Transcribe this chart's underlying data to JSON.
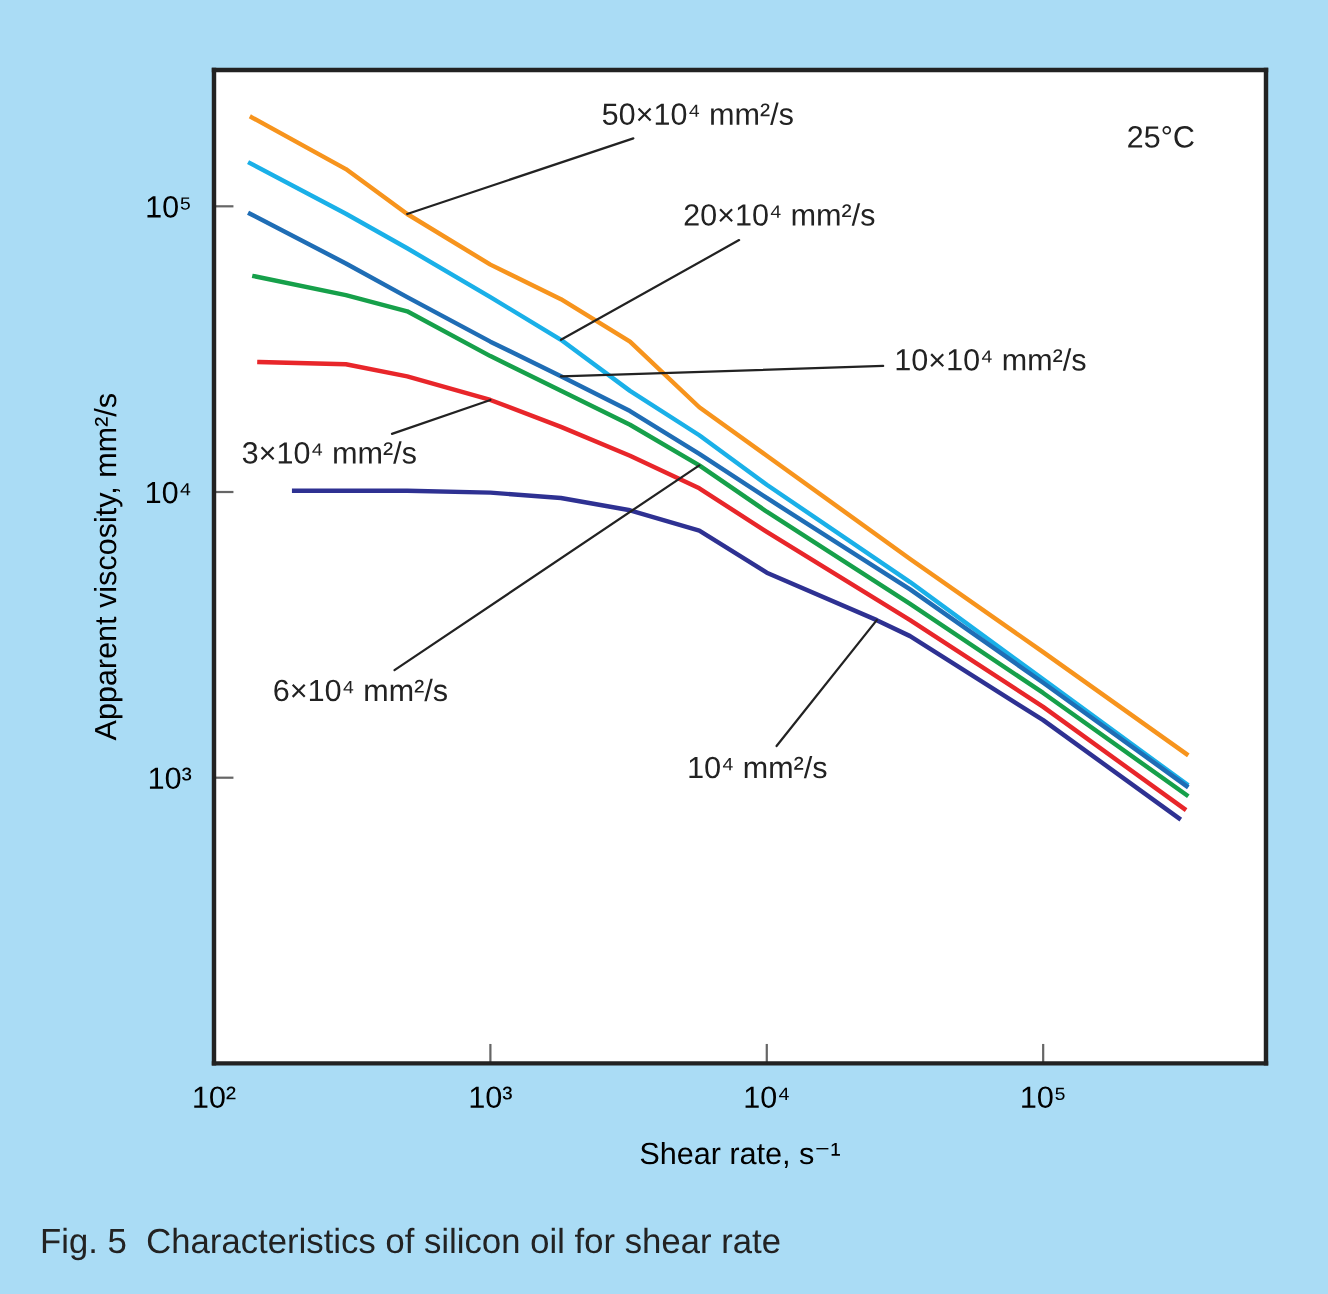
{
  "chart_data": {
    "type": "line",
    "title": "Fig. 5  Characteristics of silicon oil for shear rate",
    "xlabel": "Shear rate, s⁻¹",
    "ylabel": "Apparent viscosity, mm²/s",
    "log": "xy",
    "grid": false,
    "legend": false,
    "marker": "none",
    "line_style": "solid",
    "xlim": [
      100,
      640000
    ],
    "ylim": [
      100,
      300000
    ],
    "xticks": [
      {
        "value": 100,
        "label": "10²"
      },
      {
        "value": 1000,
        "label": "10³"
      },
      {
        "value": 10000,
        "label": "10⁴"
      },
      {
        "value": 100000,
        "label": "10⁵"
      }
    ],
    "yticks": [
      {
        "value": 1000,
        "label": "10³"
      },
      {
        "value": 10000,
        "label": "10⁴"
      },
      {
        "value": 100000,
        "label": "10⁵"
      }
    ],
    "series": [
      {
        "color": "#f7941d",
        "x": [
          137,
          300,
          500,
          1000,
          1800,
          3200,
          5700,
          10000,
          33000,
          100000,
          330000
        ],
        "values": [
          204800,
          135000,
          94000,
          62500,
          47300,
          33600,
          19800,
          13400,
          5830,
          2750,
          1210
        ]
      },
      {
        "color": "#1ab0e8",
        "x": [
          135,
          300,
          500,
          1000,
          1800,
          3200,
          5700,
          10000,
          33000,
          100000,
          330000
        ],
        "values": [
          141600,
          94200,
          71300,
          48100,
          34100,
          22600,
          15800,
          10600,
          4840,
          2210,
          950
        ]
      },
      {
        "color": "#1f6db5",
        "x": [
          135,
          300,
          500,
          1000,
          1800,
          3200,
          5700,
          10000,
          33000,
          100000,
          330000
        ],
        "values": [
          94200,
          63100,
          48100,
          33600,
          25400,
          19200,
          13600,
          9530,
          4560,
          2150,
          935
        ]
      },
      {
        "color": "#16a04a",
        "x": [
          140,
          300,
          500,
          1000,
          1800,
          3200,
          5700,
          10000,
          33000,
          100000,
          330000
        ],
        "values": [
          56900,
          48900,
          42900,
          29900,
          22600,
          17200,
          12400,
          8530,
          4060,
          1980,
          870
        ]
      },
      {
        "color": "#e8262a",
        "x": [
          146,
          300,
          500,
          1000,
          1800,
          3200,
          5700,
          10000,
          33000,
          100000,
          324000
        ],
        "values": [
          28500,
          28000,
          25400,
          21000,
          16900,
          13400,
          10300,
          7250,
          3560,
          1770,
          778
        ]
      },
      {
        "color": "#2e3192",
        "x": [
          195,
          500,
          1000,
          1800,
          3200,
          5700,
          10000,
          25000,
          33000,
          100000,
          310000
        ],
        "values": [
          10100,
          10100,
          9950,
          9530,
          8630,
          7330,
          5220,
          3560,
          3130,
          1590,
          721
        ]
      }
    ],
    "annotations": [
      {
        "text": "50×10⁴ mm²/s",
        "x": 500,
        "y": 94000
      },
      {
        "text": "20×10⁴ mm²/s",
        "x": 1800,
        "y": 34100
      },
      {
        "text": "10×10⁴ mm²/s",
        "x": 1800,
        "y": 25400
      },
      {
        "text": "3×10⁴ mm²/s",
        "x": 1000,
        "y": 21000
      },
      {
        "text": "6×10⁴ mm²/s",
        "x": 5700,
        "y": 12400
      },
      {
        "text": "10⁴ mm²/s",
        "x": 25000,
        "y": 3560
      },
      "25°C"
    ]
  }
}
